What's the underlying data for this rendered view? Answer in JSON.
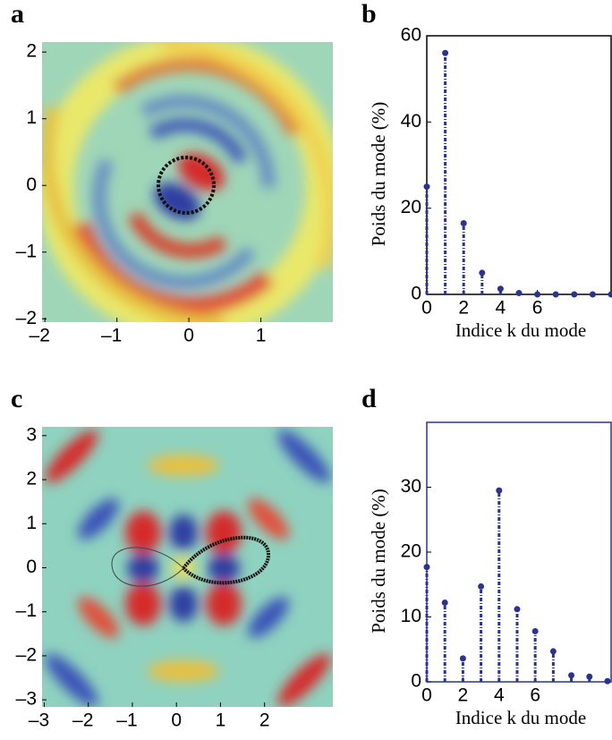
{
  "chart_data": [
    {
      "type": "image",
      "panel": "a",
      "xlim": [
        -2.04,
        2.0
      ],
      "ylim": [
        -2.05,
        2.15
      ],
      "xticks": [
        {
          "value": -2,
          "label": "–2"
        },
        {
          "value": -1,
          "label": "–1"
        },
        0,
        1
      ],
      "yticks": [
        {
          "value": -2,
          "label": "–2"
        },
        {
          "value": -1,
          "label": "–1"
        },
        0,
        1,
        2
      ]
    },
    {
      "type": "stem",
      "panel": "b",
      "color": "#2b3390",
      "xlabel": "Indice k du mode",
      "ylabel": "Poids du mode (%)",
      "x": [
        0,
        1,
        2,
        3,
        4,
        5,
        6,
        7,
        8,
        9,
        10
      ],
      "values": [
        25,
        56,
        16.5,
        5,
        1.3,
        0.3,
        0,
        0,
        0,
        0,
        0
      ],
      "xlim": [
        0,
        10
      ],
      "ylim": [
        0,
        60
      ],
      "xticks": [
        0,
        2,
        4,
        6
      ],
      "yticks": [
        0,
        20,
        40,
        60
      ]
    },
    {
      "type": "image",
      "panel": "c",
      "xlim": [
        -3.05,
        3.55
      ],
      "ylim": [
        -3.16,
        3.2
      ],
      "xticks": [
        {
          "value": -3,
          "label": "–3"
        },
        {
          "value": -2,
          "label": "–2"
        },
        {
          "value": -1,
          "label": "–1"
        },
        0,
        1,
        2
      ],
      "yticks": [
        {
          "value": -3,
          "label": "–3"
        },
        {
          "value": -2,
          "label": "–2"
        },
        {
          "value": -1,
          "label": "–1"
        },
        0,
        1,
        2,
        3
      ]
    },
    {
      "type": "stem",
      "panel": "d",
      "color": "#2b3390",
      "xlabel": "Indice k du mode",
      "ylabel": "Poids du mode (%)",
      "x": [
        0,
        1,
        2,
        3,
        4,
        5,
        6,
        7,
        8,
        9,
        10
      ],
      "values": [
        17.7,
        12.2,
        3.6,
        14.7,
        29.5,
        11.2,
        7.8,
        4.7,
        1,
        0.8,
        0.1
      ],
      "xlim": [
        0,
        10.2
      ],
      "ylim": [
        0,
        40
      ],
      "xticks": [
        0,
        2,
        4,
        6
      ],
      "yticks": [
        0,
        10,
        20,
        30
      ]
    }
  ]
}
